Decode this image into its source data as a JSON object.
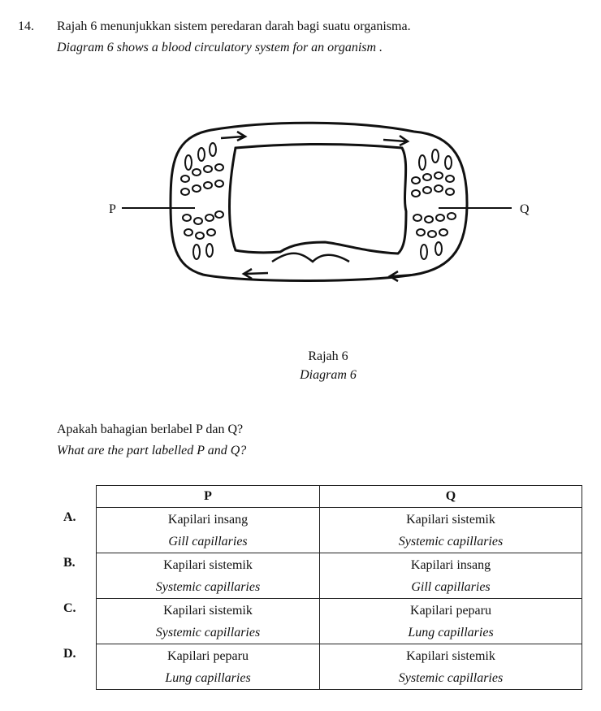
{
  "question": {
    "number": "14.",
    "stem_ms": "Rajah 6 menunjukkan sistem peredaran darah bagi suatu organisma.",
    "stem_en": "Diagram 6 shows a blood circulatory system for an organism ."
  },
  "diagram": {
    "label_p": "P",
    "label_q": "Q",
    "caption_ms": "Rajah 6",
    "caption_en": "Diagram 6"
  },
  "prompt": {
    "ms": "Apakah bahagian berlabel P dan Q?",
    "en": "What are the part labelled P and Q?"
  },
  "table": {
    "header_p": "P",
    "header_q": "Q",
    "options": [
      {
        "letter": "A.",
        "p_ms": "Kapilari insang",
        "p_en": "Gill capillaries",
        "q_ms": "Kapilari sistemik",
        "q_en": "Systemic capillaries"
      },
      {
        "letter": "B.",
        "p_ms": "Kapilari sistemik",
        "p_en": "Systemic capillaries",
        "q_ms": "Kapilari insang",
        "q_en": "Gill capillaries"
      },
      {
        "letter": "C.",
        "p_ms": "Kapilari sistemik",
        "p_en": "Systemic capillaries",
        "q_ms": "Kapilari peparu",
        "q_en": "Lung capillaries"
      },
      {
        "letter": "D.",
        "p_ms": "Kapilari peparu",
        "p_en": "Lung capillaries",
        "q_ms": "Kapilari sistemik",
        "q_en": "Systemic capillaries"
      }
    ]
  }
}
